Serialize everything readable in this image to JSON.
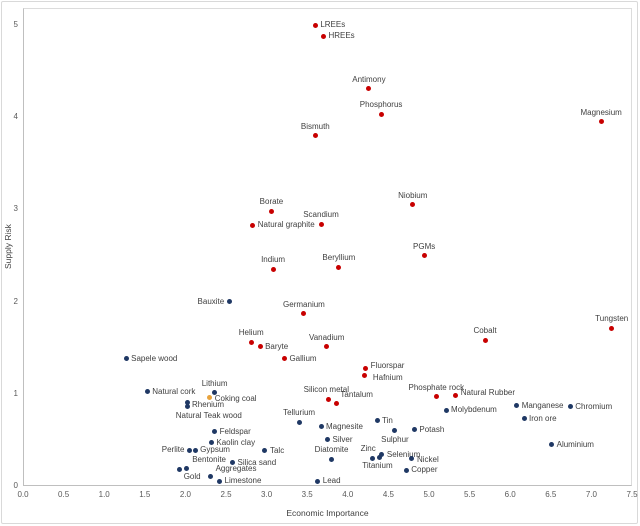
{
  "chart_data": {
    "type": "scatter",
    "xlabel": "Economic Importance",
    "ylabel": "Supply Risk",
    "xlim": [
      0,
      7.5
    ],
    "ylim": [
      0,
      5
    ],
    "grid": false,
    "legend": "none",
    "x_ticks": [
      "0.0",
      "0.5",
      "1.0",
      "1.5",
      "2.0",
      "2.5",
      "3.0",
      "3.5",
      "4.0",
      "4.5",
      "5.0",
      "5.5",
      "6.0",
      "6.5",
      "7.0",
      "7.5"
    ],
    "y_ticks": [
      "0",
      "1",
      "2",
      "3",
      "4",
      "5"
    ],
    "series": [
      {
        "name": "red-points",
        "color": "#c80000",
        "points": [
          {
            "label": "LREEs",
            "ei": 3.6,
            "sr": 5.0,
            "lp": "r"
          },
          {
            "label": "HREEs",
            "ei": 3.7,
            "sr": 4.88,
            "lp": "r"
          },
          {
            "label": "Antimony",
            "ei": 4.26,
            "sr": 4.31,
            "lp": "t"
          },
          {
            "label": "Phosphorus",
            "ei": 4.41,
            "sr": 4.03,
            "lp": "t"
          },
          {
            "label": "Magnesium",
            "ei": 7.12,
            "sr": 3.95,
            "lp": "t"
          },
          {
            "label": "Bismuth",
            "ei": 3.6,
            "sr": 3.8,
            "lp": "t"
          },
          {
            "label": "Niobium",
            "ei": 4.8,
            "sr": 3.05,
            "lp": "t"
          },
          {
            "label": "Borate",
            "ei": 3.06,
            "sr": 2.98,
            "lp": "t"
          },
          {
            "label": "Scandium",
            "ei": 3.67,
            "sr": 2.84,
            "lp": "t"
          },
          {
            "label": "Natural graphite",
            "ei": 2.83,
            "sr": 2.83,
            "lp": "r"
          },
          {
            "label": "PGMs",
            "ei": 4.94,
            "sr": 2.5,
            "lp": "t"
          },
          {
            "label": "Beryllium",
            "ei": 3.89,
            "sr": 2.37,
            "lp": "t"
          },
          {
            "label": "Indium",
            "ei": 3.08,
            "sr": 2.35,
            "lp": "t"
          },
          {
            "label": "Germanium",
            "ei": 3.46,
            "sr": 1.87,
            "lp": "t"
          },
          {
            "label": "Tungsten",
            "ei": 7.25,
            "sr": 1.71,
            "lp": "t"
          },
          {
            "label": "Cobalt",
            "ei": 5.69,
            "sr": 1.58,
            "lp": "t"
          },
          {
            "label": "Helium",
            "ei": 2.81,
            "sr": 1.56,
            "lp": "t"
          },
          {
            "label": "Vanadium",
            "ei": 3.74,
            "sr": 1.51,
            "lp": "t"
          },
          {
            "label": "Baryte",
            "ei": 2.92,
            "sr": 1.51,
            "lp": "r"
          },
          {
            "label": "Gallium",
            "ei": 3.22,
            "sr": 1.38,
            "lp": "r"
          },
          {
            "label": "Fluorspar",
            "ei": 4.22,
            "sr": 1.27,
            "lp": "r",
            "dy": -3
          },
          {
            "label": "Hafnium",
            "ei": 4.21,
            "sr": 1.2,
            "lp": "r",
            "dx": 3,
            "dy": 3
          },
          {
            "label": "Phosphate rock",
            "ei": 5.09,
            "sr": 0.97,
            "lp": "t"
          },
          {
            "label": "Natural Rubber",
            "ei": 5.33,
            "sr": 0.98,
            "lp": "r",
            "dy": -3
          },
          {
            "label": "Silicon metal",
            "ei": 3.76,
            "sr": 0.94,
            "lp": "t",
            "dx": -2
          },
          {
            "label": "Tantalum",
            "ei": 3.86,
            "sr": 0.9,
            "lp": "tr",
            "dx": 2
          }
        ]
      },
      {
        "name": "gold-points",
        "color": "#e8a33d",
        "points": [
          {
            "label": "Coking coal",
            "ei": 2.3,
            "sr": 0.96,
            "lp": "r",
            "dy": 2
          }
        ]
      },
      {
        "name": "blue-points",
        "color": "#1f3864",
        "points": [
          {
            "label": "Bauxite",
            "ei": 2.54,
            "sr": 2.0,
            "lp": "l"
          },
          {
            "label": "Sapele wood",
            "ei": 1.27,
            "sr": 1.38,
            "lp": "r"
          },
          {
            "label": "Natural cork",
            "ei": 1.53,
            "sr": 1.02,
            "lp": "r"
          },
          {
            "label": "Lithium",
            "ei": 2.36,
            "sr": 1.01,
            "lp": "t"
          },
          {
            "label": "Rhenium",
            "ei": 2.02,
            "sr": 0.91,
            "lp": "r",
            "dy": 3
          },
          {
            "label": "Natural Teak wood",
            "ei": 2.03,
            "sr": 0.86,
            "lp": "b",
            "dx": 21
          },
          {
            "label": "Feldspar",
            "ei": 2.36,
            "sr": 0.59,
            "lp": "r"
          },
          {
            "label": "Kaolin clay",
            "ei": 2.32,
            "sr": 0.47,
            "lp": "r"
          },
          {
            "label": "Perlite",
            "ei": 2.05,
            "sr": 0.39,
            "lp": "l"
          },
          {
            "label": "Gypsum",
            "ei": 2.12,
            "sr": 0.39,
            "lp": "r"
          },
          {
            "label": "Talc",
            "ei": 2.98,
            "sr": 0.38,
            "lp": "r"
          },
          {
            "label": "Bentonite",
            "ei": 2.01,
            "sr": 0.19,
            "lp": "tr",
            "dx": 4
          },
          {
            "label": "Gold",
            "ei": 1.93,
            "sr": 0.18,
            "lp": "br",
            "dx": 2
          },
          {
            "label": "Silica sand",
            "ei": 2.58,
            "sr": 0.25,
            "lp": "r"
          },
          {
            "label": "Aggregates",
            "ei": 2.31,
            "sr": 0.1,
            "lp": "tr",
            "dx": 3
          },
          {
            "label": "Limestone",
            "ei": 2.42,
            "sr": 0.05,
            "lp": "r"
          },
          {
            "label": "Tellurium",
            "ei": 3.4,
            "sr": 0.69,
            "lp": "t"
          },
          {
            "label": "Magnesite",
            "ei": 3.67,
            "sr": 0.64,
            "lp": "r"
          },
          {
            "label": "Silver",
            "ei": 3.75,
            "sr": 0.5,
            "lp": "r"
          },
          {
            "label": "Diatomite",
            "ei": 3.8,
            "sr": 0.29,
            "lp": "t"
          },
          {
            "label": "Lead",
            "ei": 3.63,
            "sr": 0.05,
            "lp": "r"
          },
          {
            "label": "Tin",
            "ei": 4.36,
            "sr": 0.71,
            "lp": "r"
          },
          {
            "label": "Sulphur",
            "ei": 4.58,
            "sr": 0.6,
            "lp": "b"
          },
          {
            "label": "Potash",
            "ei": 4.82,
            "sr": 0.61,
            "lp": "r"
          },
          {
            "label": "Zinc",
            "ei": 4.3,
            "sr": 0.3,
            "lp": "t",
            "dx": -4
          },
          {
            "label": "Titanium",
            "ei": 4.39,
            "sr": 0.31,
            "lp": "b",
            "dx": -2
          },
          {
            "label": "Selenium",
            "ei": 4.42,
            "sr": 0.34,
            "lp": "r"
          },
          {
            "label": "Nickel",
            "ei": 4.79,
            "sr": 0.3,
            "lp": "r",
            "dy": 2
          },
          {
            "label": "Copper",
            "ei": 4.72,
            "sr": 0.17,
            "lp": "r"
          },
          {
            "label": "Molybdenum",
            "ei": 5.21,
            "sr": 0.82,
            "lp": "r"
          },
          {
            "label": "Manganese",
            "ei": 6.08,
            "sr": 0.87,
            "lp": "r"
          },
          {
            "label": "Chromium",
            "ei": 6.74,
            "sr": 0.86,
            "lp": "r"
          },
          {
            "label": "Iron ore",
            "ei": 6.17,
            "sr": 0.73,
            "lp": "r"
          },
          {
            "label": "Aluminium",
            "ei": 6.51,
            "sr": 0.45,
            "lp": "r"
          }
        ]
      }
    ]
  }
}
